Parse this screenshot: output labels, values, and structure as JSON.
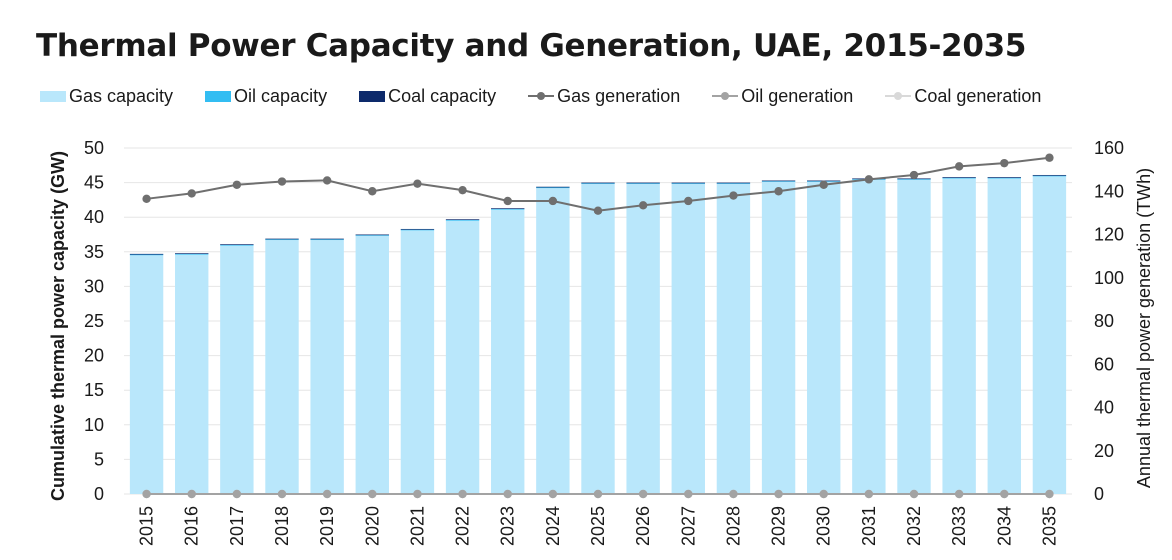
{
  "title": "Thermal Power Capacity and Generation, UAE, 2015-2035",
  "legend": [
    {
      "label": "Gas capacity",
      "kind": "bar",
      "color": "#b9e7fb"
    },
    {
      "label": "Oil capacity",
      "kind": "bar",
      "color": "#33bdf2"
    },
    {
      "label": "Coal capacity",
      "kind": "bar",
      "color": "#0d2a6b"
    },
    {
      "label": "Gas generation",
      "kind": "line",
      "color": "#6f6f6f"
    },
    {
      "label": "Oil generation",
      "kind": "line",
      "color": "#a3a3a3"
    },
    {
      "label": "Coal generation",
      "kind": "line",
      "color": "#d9d9d9"
    }
  ],
  "chart_data": {
    "type": "bar",
    "title": "Thermal Power Capacity and Generation, UAE, 2015-2035",
    "categories": [
      "2015",
      "2016",
      "2017",
      "2018",
      "2019",
      "2020",
      "2021",
      "2022",
      "2023",
      "2024",
      "2025",
      "2026",
      "2027",
      "2028",
      "2029",
      "2030",
      "2031",
      "2032",
      "2033",
      "2034",
      "2035"
    ],
    "ylabel": "Cumulative thermal power capacity (GW)",
    "y2label": "Annual thermal power generation (TWh)",
    "ylim": [
      0,
      50
    ],
    "y2lim": [
      0,
      160
    ],
    "yticks": [
      0,
      5,
      10,
      15,
      20,
      25,
      30,
      35,
      40,
      45,
      50
    ],
    "y2ticks": [
      0,
      20,
      40,
      60,
      80,
      100,
      120,
      140,
      160
    ],
    "grid": true,
    "legend_position": "top",
    "bar_series": [
      {
        "name": "Gas capacity",
        "color": "#b9e7fb",
        "values": [
          34.5,
          34.6,
          35.9,
          36.7,
          36.7,
          37.3,
          38.1,
          39.5,
          41.1,
          44.2,
          44.8,
          44.8,
          44.8,
          44.8,
          45.1,
          45.1,
          45.4,
          45.4,
          45.6,
          45.6,
          45.9
        ]
      },
      {
        "name": "Oil capacity",
        "color": "#33bdf2",
        "values": [
          0.1,
          0.1,
          0.1,
          0.1,
          0.1,
          0.1,
          0.1,
          0.1,
          0.1,
          0.1,
          0.1,
          0.1,
          0.1,
          0.1,
          0.1,
          0.1,
          0.1,
          0.1,
          0.1,
          0.1,
          0.1
        ]
      },
      {
        "name": "Coal capacity",
        "color": "#0d2a6b",
        "values": [
          0.1,
          0.1,
          0.1,
          0.1,
          0.1,
          0.1,
          0.1,
          0.1,
          0.1,
          0.1,
          0.1,
          0.1,
          0.1,
          0.1,
          0.1,
          0.1,
          0.1,
          0.1,
          0.1,
          0.1,
          0.1
        ]
      }
    ],
    "line_series": [
      {
        "name": "Gas generation",
        "color": "#6f6f6f",
        "axis": "right",
        "values": [
          136.5,
          139,
          143,
          144.5,
          145,
          140,
          143.5,
          140.5,
          135.5,
          135.5,
          131,
          133.5,
          135.5,
          138,
          140,
          143,
          145.5,
          147.5,
          151.5,
          153,
          155.5
        ]
      },
      {
        "name": "Oil generation",
        "color": "#a3a3a3",
        "axis": "right",
        "values": [
          0,
          0,
          0,
          0,
          0,
          0,
          0,
          0,
          0,
          0,
          0,
          0,
          0,
          0,
          0,
          0,
          0,
          0,
          0,
          0,
          0
        ]
      },
      {
        "name": "Coal generation",
        "color": "#d9d9d9",
        "axis": "right",
        "values": [
          0,
          0,
          0,
          0,
          0,
          0,
          0,
          0,
          0,
          0,
          0,
          0,
          0,
          0,
          0,
          0,
          0,
          0,
          0,
          0,
          0
        ]
      }
    ]
  }
}
